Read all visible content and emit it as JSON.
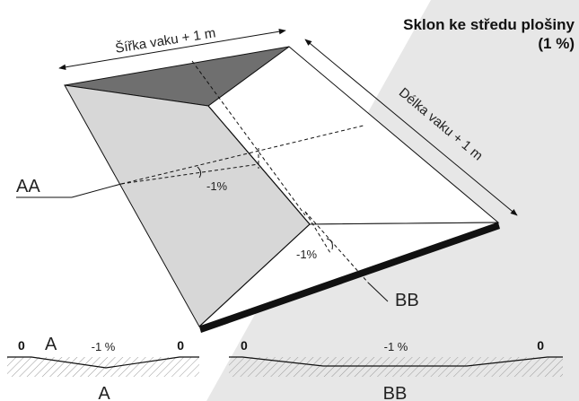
{
  "title": {
    "line1": "Sklon ke středu plošiny",
    "line2": "(1 %)"
  },
  "dimensions": {
    "width": "Šířka vaku + 1 m",
    "length": "Délka vaku + 1 m"
  },
  "sections": {
    "aa": "AA",
    "bb": "BB"
  },
  "slopes": {
    "aa": "-1%",
    "bb": "-1%"
  },
  "profile_a": {
    "zero_left": "0",
    "letter": "A",
    "slope": "-1 %",
    "zero_right": "0",
    "caption": "A"
  },
  "profile_bb": {
    "zero_left": "0",
    "slope": "-1 %",
    "zero_right": "0",
    "caption": "BB"
  },
  "colors": {
    "dark_face": "#6f6f6f",
    "side_face": "#d7d7d7",
    "top_face": "#ffffff",
    "edge": "#111111",
    "background_band": "#e7e7e7"
  }
}
